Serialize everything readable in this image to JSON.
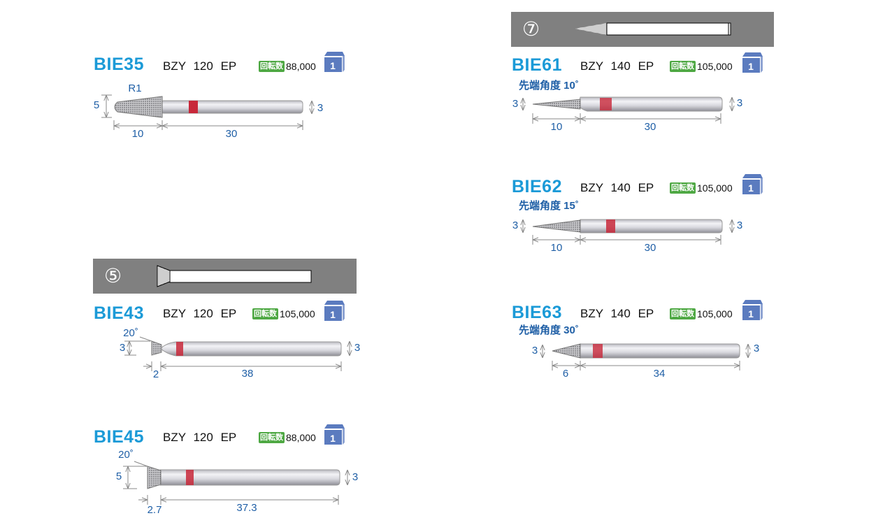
{
  "sections": [
    {
      "number": "⑦"
    },
    {
      "number": "⑤"
    }
  ],
  "rpm_label": "回転数",
  "products": [
    {
      "code": "BIE35",
      "spec": "BZY 120 EP",
      "rpm": "88,000",
      "qty": "1",
      "dims": {
        "radius": "R1",
        "diameter": "5",
        "head_length": "10",
        "shank_length": "30",
        "shank_diameter": "3"
      }
    },
    {
      "code": "BIE61",
      "spec": "BZY 140 EP",
      "rpm": "105,000",
      "qty": "1",
      "angle": "先端角度 10˚",
      "dims": {
        "diameter": "3",
        "head_length": "10",
        "shank_length": "30",
        "shank_diameter": "3"
      }
    },
    {
      "code": "BIE62",
      "spec": "BZY 140 EP",
      "rpm": "105,000",
      "qty": "1",
      "angle": "先端角度 15˚",
      "dims": {
        "diameter": "3",
        "head_length": "10",
        "shank_length": "30",
        "shank_diameter": "3"
      }
    },
    {
      "code": "BIE63",
      "spec": "BZY 140 EP",
      "rpm": "105,000",
      "qty": "1",
      "angle": "先端角度 30˚",
      "dims": {
        "diameter": "3",
        "head_length": "6",
        "shank_length": "34",
        "shank_diameter": "3"
      }
    },
    {
      "code": "BIE43",
      "spec": "BZY 120 EP",
      "rpm": "105,000",
      "qty": "1",
      "dims": {
        "angle": "20˚",
        "diameter": "3",
        "head_length": "2",
        "shank_length": "38",
        "shank_diameter": "3"
      }
    },
    {
      "code": "BIE45",
      "spec": "BZY 120 EP",
      "rpm": "88,000",
      "qty": "1",
      "dims": {
        "angle": "20˚",
        "diameter": "5",
        "head_length": "2.7",
        "shank_length": "37.3",
        "shank_diameter": "3"
      }
    }
  ],
  "colors": {
    "code": "#1b9ad7",
    "dimension": "#1f5fa6",
    "band": "#808080",
    "badge": "#4ea843",
    "box": "#5b7bbf",
    "marker": "#c8283a"
  }
}
